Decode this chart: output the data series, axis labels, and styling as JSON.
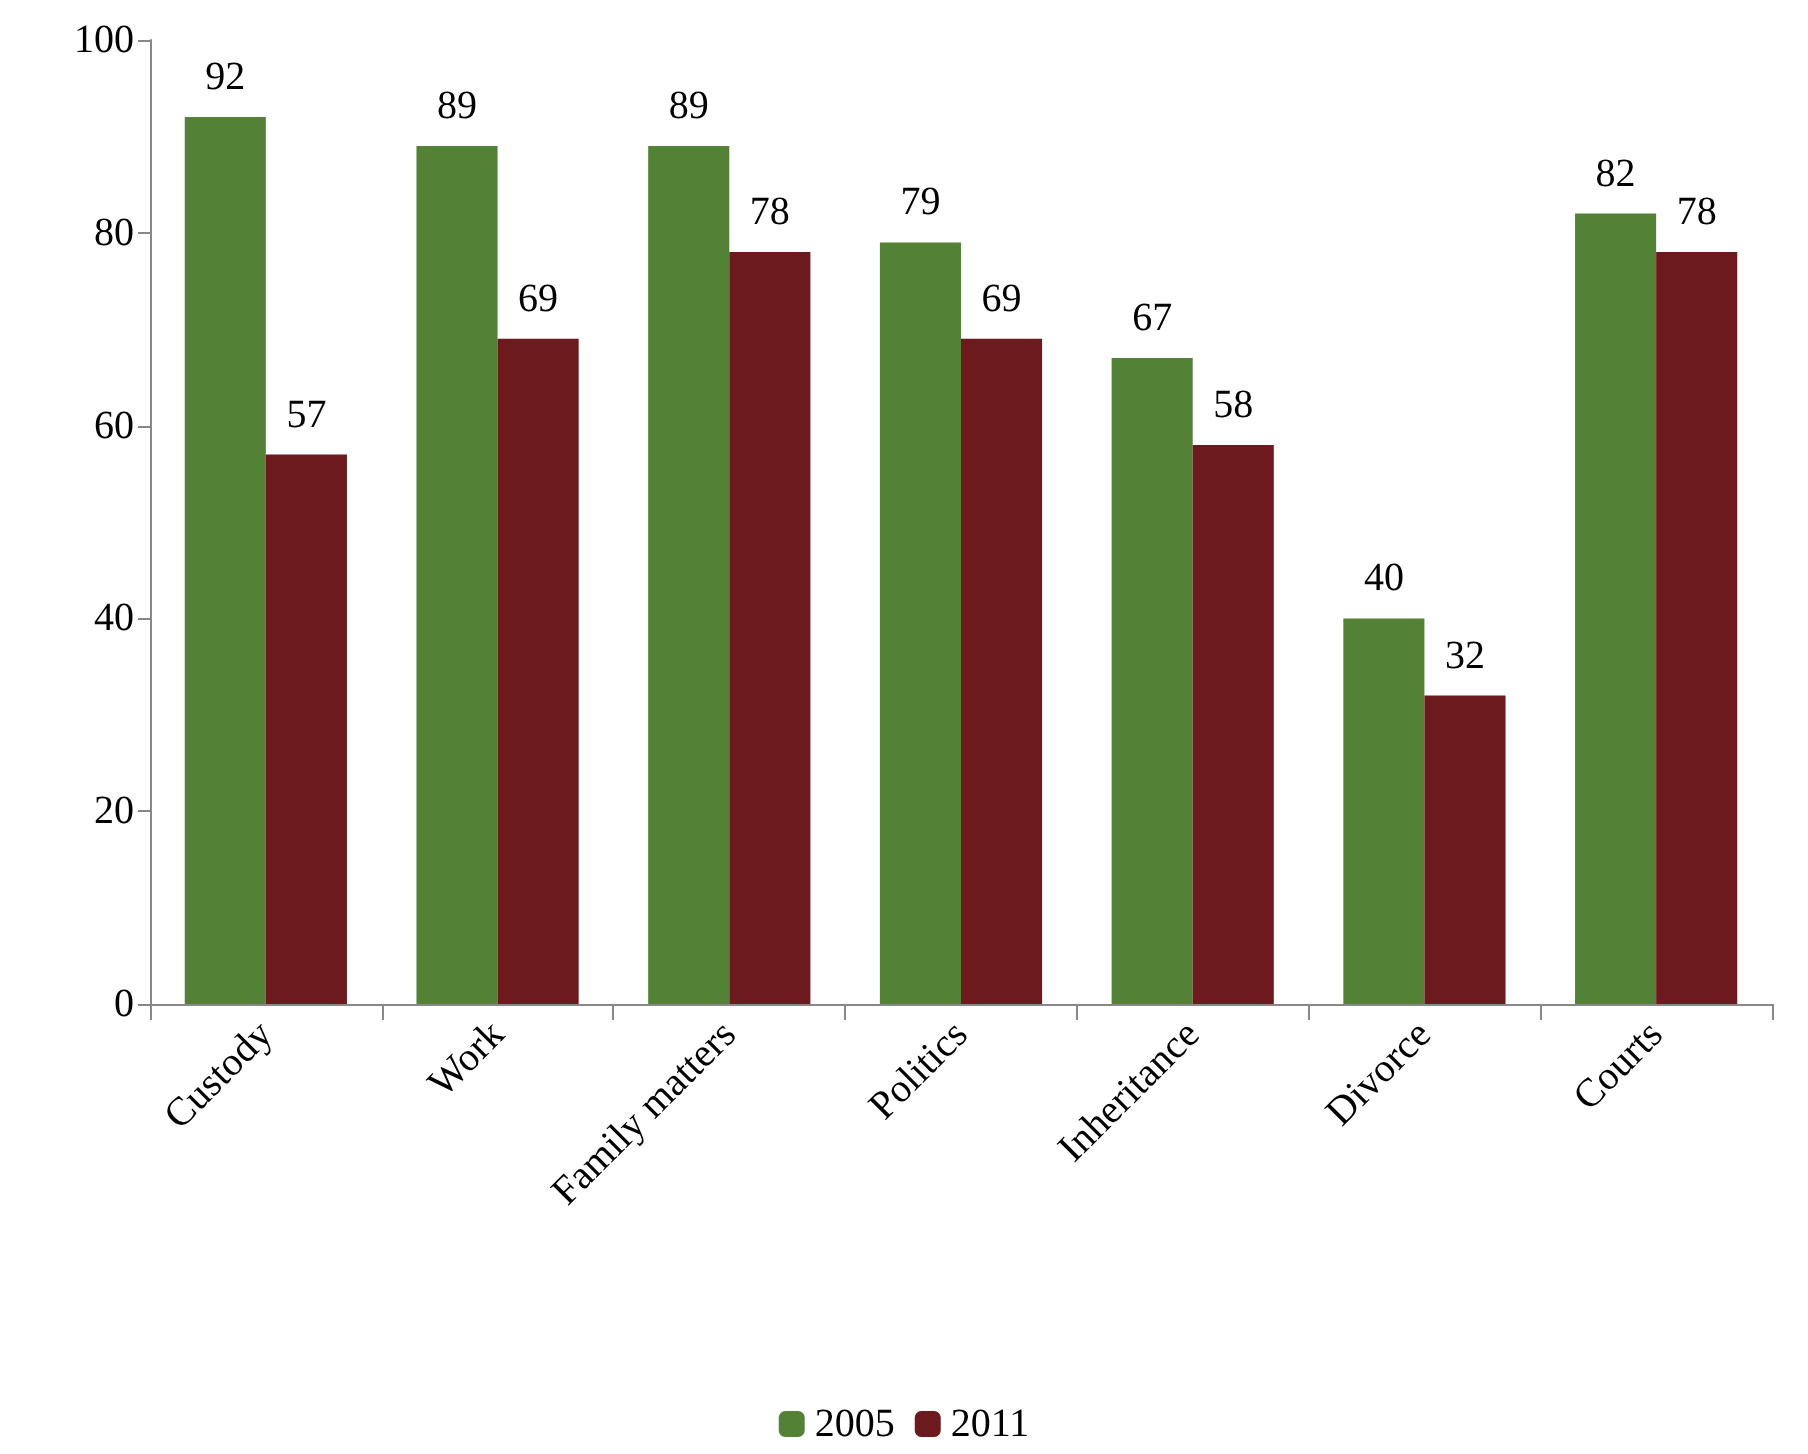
{
  "chart_data": {
    "type": "bar",
    "categories": [
      "Custody",
      "Work",
      "Family matters",
      "Politics",
      "Inheritance",
      "Divorce",
      "Courts"
    ],
    "series": [
      {
        "name": "2005",
        "color": "#538135",
        "values": [
          92,
          89,
          89,
          79,
          67,
          40,
          82
        ]
      },
      {
        "name": "2011",
        "color": "#6d1a1f",
        "values": [
          57,
          69,
          78,
          69,
          58,
          32,
          78
        ]
      }
    ],
    "ylim": [
      0,
      100
    ],
    "yticks": [
      0,
      20,
      40,
      60,
      80,
      100
    ],
    "grid": false,
    "legend": "bottom",
    "data_labels": true
  }
}
